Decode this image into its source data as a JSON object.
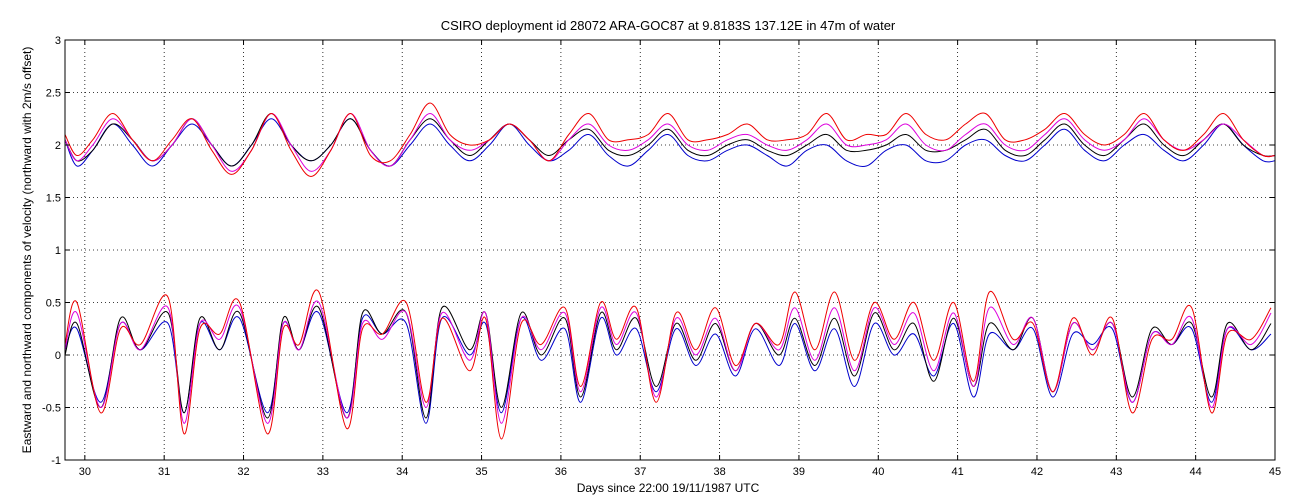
{
  "chart_data": {
    "type": "line",
    "title": "CSIRO deployment id 28072 ARA-GOC87 at 9.8183S 137.12E in 47m of water",
    "xlabel": "Days since 22:00 19/11/1987 UTC",
    "ylabel": "Eastward  and northward components of velocity  (northward with 2m/s offset)",
    "xlim": [
      29.75,
      45.0
    ],
    "ylim": [
      -1,
      3
    ],
    "grid": true,
    "x_ticks": [
      "30",
      "31",
      "32",
      "33",
      "34",
      "35",
      "36",
      "37",
      "38",
      "39",
      "40",
      "41",
      "42",
      "43",
      "44",
      "45"
    ],
    "y_ticks": [
      "-1",
      "-0.5",
      "0",
      "0.5",
      "1",
      "1.5",
      "2",
      "2.5",
      "3"
    ],
    "x_tick_values": [
      30,
      31,
      32,
      33,
      34,
      35,
      36,
      37,
      38,
      39,
      40,
      41,
      42,
      43,
      44,
      45
    ],
    "y_tick_values": [
      -1,
      -0.5,
      0,
      0.5,
      1,
      1.5,
      2,
      2.5,
      3
    ],
    "series": [
      {
        "name": "bin-blue",
        "color": "#0000cc",
        "x": [
          29.75,
          29.9,
          30.2,
          30.45,
          30.7,
          31.05,
          31.25,
          31.45,
          31.7,
          31.95,
          32.3,
          32.5,
          32.7,
          32.95,
          33.3,
          33.5,
          33.75,
          34.05,
          34.3,
          34.5,
          34.85,
          35.05,
          35.25,
          35.5,
          35.75,
          36.05,
          36.25,
          36.5,
          36.7,
          36.95,
          37.2,
          37.45,
          37.7,
          37.95,
          38.2,
          38.45,
          38.75,
          38.95,
          39.2,
          39.45,
          39.7,
          39.95,
          40.2,
          40.45,
          40.7,
          40.95,
          41.2,
          41.4,
          41.7,
          41.95,
          42.2,
          42.45,
          42.7,
          42.95,
          43.2,
          43.45,
          43.7,
          43.95,
          44.2,
          44.4,
          44.7,
          44.95
        ],
        "y": [
          0.05,
          0.25,
          -0.45,
          0.3,
          0.05,
          0.3,
          -0.55,
          0.3,
          0.05,
          0.35,
          -0.55,
          0.3,
          0.05,
          0.4,
          -0.55,
          0.35,
          0.2,
          0.3,
          -0.65,
          0.35,
          0.0,
          0.3,
          -0.55,
          0.35,
          -0.05,
          0.25,
          -0.45,
          0.35,
          0.0,
          0.25,
          -0.35,
          0.25,
          -0.1,
          0.2,
          -0.2,
          0.25,
          -0.1,
          0.3,
          -0.15,
          0.25,
          -0.3,
          0.3,
          0.0,
          0.2,
          -0.2,
          0.3,
          -0.4,
          0.2,
          0.05,
          0.25,
          -0.4,
          0.2,
          0.1,
          0.25,
          -0.45,
          0.2,
          0.1,
          0.25,
          -0.45,
          0.25,
          0.05,
          0.2
        ]
      },
      {
        "name": "bin-black",
        "color": "#000000",
        "x": [
          29.75,
          29.9,
          30.2,
          30.45,
          30.7,
          31.05,
          31.25,
          31.45,
          31.7,
          31.95,
          32.3,
          32.5,
          32.7,
          32.95,
          33.3,
          33.5,
          33.75,
          34.05,
          34.3,
          34.5,
          34.85,
          35.05,
          35.25,
          35.5,
          35.75,
          36.05,
          36.25,
          36.5,
          36.7,
          36.95,
          37.2,
          37.45,
          37.7,
          37.95,
          38.2,
          38.45,
          38.75,
          38.95,
          39.2,
          39.45,
          39.7,
          39.95,
          40.2,
          40.45,
          40.7,
          40.95,
          41.2,
          41.4,
          41.7,
          41.95,
          42.2,
          42.45,
          42.7,
          42.95,
          43.2,
          43.45,
          43.7,
          43.95,
          44.2,
          44.4,
          44.7,
          44.95
        ],
        "y": [
          0.0,
          0.3,
          -0.5,
          0.35,
          0.05,
          0.4,
          -0.55,
          0.35,
          0.05,
          0.4,
          -0.6,
          0.35,
          0.05,
          0.45,
          -0.6,
          0.4,
          0.2,
          0.4,
          -0.6,
          0.45,
          0.05,
          0.4,
          -0.5,
          0.4,
          0.0,
          0.35,
          -0.4,
          0.4,
          0.05,
          0.35,
          -0.3,
          0.3,
          -0.05,
          0.3,
          -0.15,
          0.3,
          0.0,
          0.35,
          -0.1,
          0.35,
          -0.2,
          0.4,
          0.05,
          0.3,
          -0.25,
          0.35,
          -0.3,
          0.3,
          0.05,
          0.35,
          -0.35,
          0.3,
          0.05,
          0.3,
          -0.4,
          0.25,
          0.1,
          0.3,
          -0.4,
          0.3,
          0.05,
          0.3
        ]
      },
      {
        "name": "bin-magenta",
        "color": "#dd00dd",
        "x": [
          29.75,
          29.9,
          30.2,
          30.45,
          30.7,
          31.05,
          31.25,
          31.45,
          31.7,
          31.95,
          32.3,
          32.5,
          32.7,
          32.95,
          33.3,
          33.5,
          33.75,
          34.05,
          34.3,
          34.5,
          34.85,
          35.05,
          35.25,
          35.5,
          35.75,
          36.05,
          36.25,
          36.5,
          36.7,
          36.95,
          37.2,
          37.45,
          37.7,
          37.95,
          38.2,
          38.45,
          38.75,
          38.95,
          39.2,
          39.45,
          39.7,
          39.95,
          40.2,
          40.45,
          40.7,
          40.95,
          41.2,
          41.4,
          41.7,
          41.95,
          42.2,
          42.45,
          42.7,
          42.95,
          43.2,
          43.45,
          43.7,
          43.95,
          44.2,
          44.4,
          44.7,
          44.95
        ],
        "y": [
          0.05,
          0.4,
          -0.5,
          0.3,
          0.05,
          0.45,
          -0.65,
          0.3,
          0.15,
          0.45,
          -0.65,
          0.3,
          0.05,
          0.5,
          -0.6,
          0.3,
          0.15,
          0.4,
          -0.5,
          0.4,
          -0.05,
          0.4,
          -0.65,
          0.35,
          0.05,
          0.4,
          -0.35,
          0.45,
          0.1,
          0.4,
          -0.4,
          0.35,
          0.0,
          0.35,
          -0.15,
          0.3,
          0.05,
          0.45,
          -0.05,
          0.45,
          -0.15,
          0.45,
          0.1,
          0.4,
          -0.15,
          0.4,
          -0.3,
          0.45,
          0.1,
          0.35,
          -0.35,
          0.3,
          0.05,
          0.3,
          -0.45,
          0.2,
          0.1,
          0.35,
          -0.5,
          0.25,
          0.1,
          0.4
        ]
      },
      {
        "name": "bin-red",
        "color": "#ee0000",
        "x": [
          29.75,
          29.9,
          30.2,
          30.45,
          30.7,
          31.05,
          31.25,
          31.45,
          31.7,
          31.95,
          32.3,
          32.5,
          32.7,
          32.95,
          33.3,
          33.5,
          33.75,
          34.05,
          34.3,
          34.5,
          34.85,
          35.05,
          35.25,
          35.5,
          35.75,
          36.05,
          36.25,
          36.5,
          36.7,
          36.95,
          37.2,
          37.45,
          37.7,
          37.95,
          38.2,
          38.45,
          38.75,
          38.95,
          39.2,
          39.45,
          39.7,
          39.95,
          40.2,
          40.45,
          40.7,
          40.95,
          41.2,
          41.4,
          41.7,
          41.95,
          42.2,
          42.45,
          42.7,
          42.95,
          43.2,
          43.45,
          43.7,
          43.95,
          44.2,
          44.4,
          44.7,
          44.95
        ],
        "y": [
          0.1,
          0.5,
          -0.55,
          0.25,
          0.1,
          0.55,
          -0.75,
          0.25,
          0.2,
          0.5,
          -0.75,
          0.25,
          0.1,
          0.6,
          -0.7,
          0.25,
          0.2,
          0.5,
          -0.45,
          0.35,
          -0.15,
          0.35,
          -0.8,
          0.3,
          0.1,
          0.45,
          -0.3,
          0.5,
          0.15,
          0.45,
          -0.45,
          0.4,
          0.05,
          0.45,
          -0.1,
          0.3,
          0.1,
          0.6,
          0.05,
          0.6,
          -0.05,
          0.5,
          0.15,
          0.5,
          -0.05,
          0.5,
          -0.25,
          0.6,
          0.15,
          0.3,
          -0.35,
          0.35,
          0.0,
          0.35,
          -0.55,
          0.15,
          0.15,
          0.45,
          -0.55,
          0.2,
          0.15,
          0.45
        ]
      },
      {
        "name": "bin-blue-northward",
        "color": "#0000cc",
        "x": [
          29.75,
          29.9,
          30.1,
          30.35,
          30.6,
          30.85,
          31.1,
          31.35,
          31.6,
          31.85,
          32.1,
          32.35,
          32.6,
          32.85,
          33.1,
          33.35,
          33.6,
          33.85,
          34.1,
          34.35,
          34.6,
          34.85,
          35.1,
          35.35,
          35.6,
          35.85,
          36.1,
          36.35,
          36.6,
          36.85,
          37.1,
          37.35,
          37.6,
          37.85,
          38.1,
          38.35,
          38.6,
          38.85,
          39.1,
          39.35,
          39.6,
          39.85,
          40.1,
          40.35,
          40.6,
          40.85,
          41.1,
          41.35,
          41.6,
          41.85,
          42.1,
          42.35,
          42.6,
          42.85,
          43.1,
          43.35,
          43.6,
          43.85,
          44.1,
          44.35,
          44.6,
          44.85,
          45.0
        ],
        "y": [
          2.05,
          1.8,
          1.95,
          2.2,
          2.0,
          1.8,
          2.0,
          2.2,
          2.0,
          1.8,
          2.0,
          2.25,
          2.0,
          1.85,
          2.0,
          2.25,
          1.95,
          1.8,
          2.0,
          2.2,
          2.0,
          1.85,
          2.0,
          2.2,
          2.0,
          1.85,
          1.95,
          2.1,
          1.9,
          1.8,
          1.95,
          2.1,
          1.9,
          1.85,
          1.95,
          2.0,
          1.9,
          1.8,
          1.95,
          2.0,
          1.85,
          1.8,
          1.95,
          2.0,
          1.85,
          1.85,
          2.0,
          2.05,
          1.9,
          1.85,
          2.0,
          2.15,
          1.95,
          1.85,
          2.0,
          2.1,
          1.95,
          1.85,
          2.0,
          2.2,
          2.0,
          1.85,
          1.85
        ]
      },
      {
        "name": "bin-black-northward",
        "color": "#000000",
        "x": [
          29.75,
          29.9,
          30.1,
          30.35,
          30.6,
          30.85,
          31.1,
          31.35,
          31.6,
          31.85,
          32.1,
          32.35,
          32.6,
          32.85,
          33.1,
          33.35,
          33.6,
          33.85,
          34.1,
          34.35,
          34.6,
          34.85,
          35.1,
          35.35,
          35.6,
          35.85,
          36.1,
          36.35,
          36.6,
          36.85,
          37.1,
          37.35,
          37.6,
          37.85,
          38.1,
          38.35,
          38.6,
          38.85,
          39.1,
          39.35,
          39.6,
          39.85,
          40.1,
          40.35,
          40.6,
          40.85,
          41.1,
          41.35,
          41.6,
          41.85,
          42.1,
          42.35,
          42.6,
          42.85,
          43.1,
          43.35,
          43.6,
          43.85,
          44.1,
          44.35,
          44.6,
          44.85,
          45.0
        ],
        "y": [
          2.05,
          1.85,
          1.95,
          2.2,
          2.05,
          1.85,
          2.0,
          2.25,
          2.0,
          1.8,
          2.0,
          2.3,
          2.0,
          1.85,
          2.0,
          2.25,
          1.95,
          1.8,
          2.05,
          2.25,
          2.05,
          1.9,
          2.05,
          2.2,
          2.05,
          1.9,
          2.05,
          2.15,
          1.95,
          1.9,
          2.0,
          2.15,
          1.95,
          1.9,
          2.0,
          2.05,
          1.95,
          1.9,
          2.0,
          2.1,
          1.95,
          1.95,
          2.0,
          2.1,
          1.95,
          1.95,
          2.05,
          2.15,
          1.95,
          1.9,
          2.05,
          2.2,
          2.0,
          1.9,
          2.05,
          2.2,
          2.0,
          1.9,
          2.05,
          2.2,
          2.0,
          1.9,
          1.9
        ]
      },
      {
        "name": "bin-magenta-northward",
        "color": "#dd00dd",
        "x": [
          29.75,
          29.9,
          30.1,
          30.35,
          30.6,
          30.85,
          31.1,
          31.35,
          31.6,
          31.85,
          32.1,
          32.35,
          32.6,
          32.85,
          33.1,
          33.35,
          33.6,
          33.85,
          34.1,
          34.35,
          34.6,
          34.85,
          35.1,
          35.35,
          35.6,
          35.85,
          36.1,
          36.35,
          36.6,
          36.85,
          37.1,
          37.35,
          37.6,
          37.85,
          38.1,
          38.35,
          38.6,
          38.85,
          39.1,
          39.35,
          39.6,
          39.85,
          40.1,
          40.35,
          40.6,
          40.85,
          41.1,
          41.35,
          41.6,
          41.85,
          42.1,
          42.35,
          42.6,
          42.85,
          43.1,
          43.35,
          43.6,
          43.85,
          44.1,
          44.35,
          44.6,
          44.85,
          45.0
        ],
        "y": [
          2.05,
          1.85,
          2.0,
          2.25,
          2.05,
          1.85,
          2.0,
          2.25,
          2.0,
          1.75,
          1.95,
          2.3,
          2.0,
          1.75,
          1.95,
          2.3,
          1.95,
          1.8,
          2.05,
          2.3,
          2.05,
          1.95,
          2.05,
          2.2,
          2.05,
          1.85,
          2.05,
          2.2,
          2.0,
          1.95,
          2.05,
          2.2,
          2.0,
          1.95,
          2.05,
          2.1,
          2.0,
          1.95,
          2.05,
          2.2,
          2.0,
          2.0,
          2.05,
          2.2,
          2.0,
          1.95,
          2.1,
          2.2,
          2.0,
          1.95,
          2.1,
          2.25,
          2.05,
          1.95,
          2.05,
          2.25,
          2.05,
          1.95,
          2.05,
          2.2,
          2.05,
          1.9,
          1.9
        ]
      },
      {
        "name": "bin-red-northward",
        "color": "#ee0000",
        "x": [
          29.75,
          29.9,
          30.1,
          30.35,
          30.6,
          30.85,
          31.1,
          31.35,
          31.6,
          31.85,
          32.1,
          32.35,
          32.6,
          32.85,
          33.1,
          33.35,
          33.6,
          33.85,
          34.1,
          34.35,
          34.6,
          34.85,
          35.1,
          35.35,
          35.6,
          35.85,
          36.1,
          36.35,
          36.6,
          36.85,
          37.1,
          37.35,
          37.6,
          37.85,
          38.1,
          38.35,
          38.6,
          38.85,
          39.1,
          39.35,
          39.6,
          39.85,
          40.1,
          40.35,
          40.6,
          40.85,
          41.1,
          41.35,
          41.6,
          41.85,
          42.1,
          42.35,
          42.6,
          42.85,
          43.1,
          43.35,
          43.6,
          43.85,
          44.1,
          44.35,
          44.6,
          44.85,
          45.0
        ],
        "y": [
          2.1,
          1.9,
          2.05,
          2.3,
          2.05,
          1.85,
          2.05,
          2.25,
          1.95,
          1.72,
          1.95,
          2.3,
          1.95,
          1.7,
          1.95,
          2.3,
          1.9,
          1.85,
          2.1,
          2.4,
          2.1,
          2.0,
          2.05,
          2.2,
          2.05,
          1.85,
          2.1,
          2.3,
          2.05,
          2.05,
          2.1,
          2.3,
          2.05,
          2.05,
          2.1,
          2.2,
          2.05,
          2.05,
          2.1,
          2.3,
          2.05,
          2.1,
          2.1,
          2.3,
          2.1,
          2.05,
          2.2,
          2.3,
          2.05,
          2.05,
          2.15,
          2.3,
          2.1,
          2.0,
          2.1,
          2.3,
          2.05,
          1.95,
          2.1,
          2.3,
          2.05,
          1.9,
          1.9
        ]
      }
    ]
  }
}
